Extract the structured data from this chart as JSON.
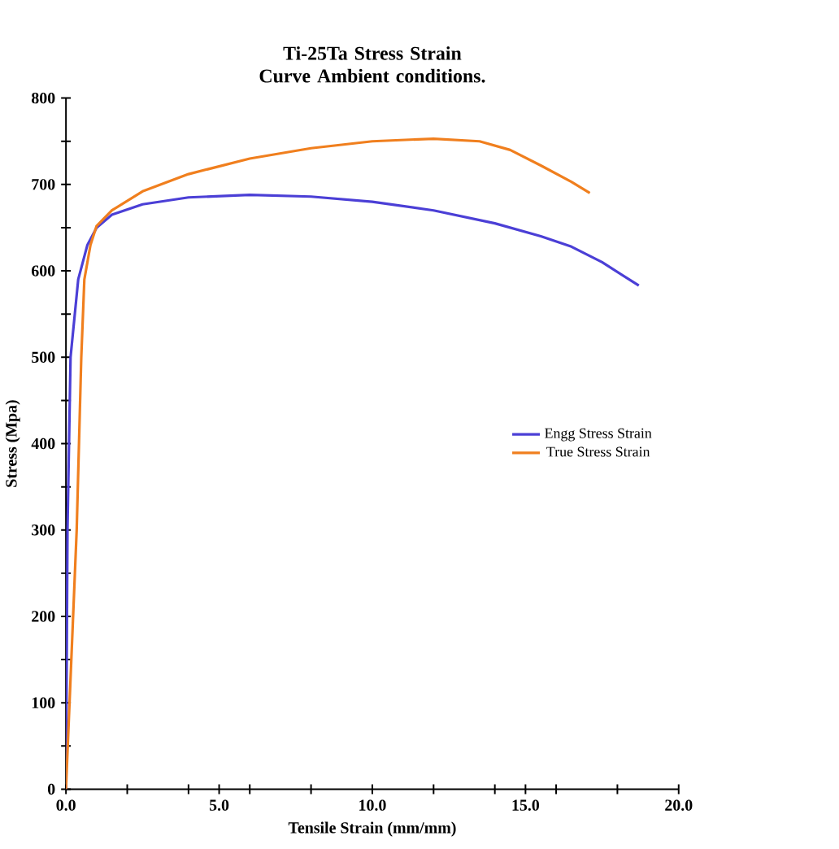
{
  "chart_data": {
    "type": "line",
    "title": "Ti-25Ta Stress Strain Curve Ambient conditions.",
    "xlabel": "Tensile Strain (mm/mm)",
    "ylabel": "Stress (Mpa)",
    "xlim": [
      0,
      20
    ],
    "ylim": [
      0,
      800
    ],
    "xticks": [
      {
        "value": 0,
        "label": "0.0"
      },
      {
        "value": 2,
        "label": null
      },
      {
        "value": 4,
        "label": null
      },
      {
        "value": 5,
        "label": "5.0"
      },
      {
        "value": 6,
        "label": null
      },
      {
        "value": 8,
        "label": null
      },
      {
        "value": 10,
        "label": "10.0"
      },
      {
        "value": 12,
        "label": null
      },
      {
        "value": 14,
        "label": null
      },
      {
        "value": 15,
        "label": "15.0"
      },
      {
        "value": 16,
        "label": null
      },
      {
        "value": 18,
        "label": null
      },
      {
        "value": 20,
        "label": "20.0"
      }
    ],
    "yticks": [
      0,
      {
        "value": 50,
        "label": null
      },
      100,
      {
        "value": 150,
        "label": null
      },
      200,
      {
        "value": 250,
        "label": null
      },
      300,
      {
        "value": 350,
        "label": null
      },
      400,
      {
        "value": 450,
        "label": null
      },
      500,
      {
        "value": 550,
        "label": null
      },
      600,
      {
        "value": 650,
        "label": null
      },
      700,
      {
        "value": 750,
        "label": null
      },
      800
    ],
    "legend": "right",
    "grid": false,
    "marker": "none",
    "line_style": "solid",
    "series": [
      {
        "name": "Engg Stress Strain",
        "color": "#4b3fd6",
        "x": [
          0,
          0.05,
          0.15,
          0.4,
          0.7,
          1.0,
          1.5,
          2.5,
          4,
          6,
          8,
          10,
          12,
          14,
          15.5,
          16.5,
          17.5,
          18.7
        ],
        "values": [
          0,
          300,
          500,
          590,
          630,
          650,
          665,
          677,
          685,
          688,
          686,
          680,
          670,
          655,
          640,
          628,
          610,
          583
        ]
      },
      {
        "name": "True Stress Strain",
        "color": "#f07f1e",
        "x": [
          0,
          0.35,
          0.5,
          0.6,
          0.8,
          1.0,
          1.5,
          2.5,
          4,
          6,
          8,
          10,
          12,
          13.5,
          14.5,
          15.5,
          16.5,
          17.1
        ],
        "values": [
          0,
          300,
          500,
          590,
          630,
          652,
          670,
          692,
          712,
          730,
          742,
          750,
          753,
          750,
          740,
          722,
          703,
          690
        ]
      }
    ]
  }
}
